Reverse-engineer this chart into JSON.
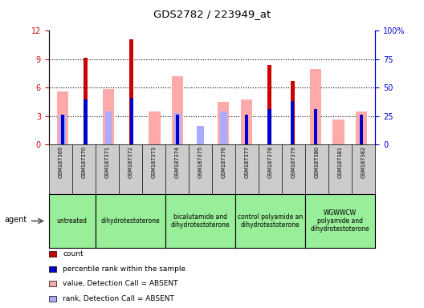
{
  "title": "GDS2782 / 223949_at",
  "samples": [
    "GSM187369",
    "GSM187370",
    "GSM187371",
    "GSM187372",
    "GSM187373",
    "GSM187374",
    "GSM187375",
    "GSM187376",
    "GSM187377",
    "GSM187378",
    "GSM187379",
    "GSM187380",
    "GSM187381",
    "GSM187382"
  ],
  "count": [
    0,
    9.2,
    0,
    11.1,
    0,
    0,
    0,
    0,
    0,
    8.4,
    6.7,
    0,
    0,
    0
  ],
  "percentile_rank_vals": [
    26.5,
    40.0,
    0,
    41.5,
    0,
    26.5,
    0,
    0,
    26.5,
    31.0,
    38.5,
    31.0,
    0,
    26.5
  ],
  "value_absent": [
    5.6,
    0,
    5.9,
    0,
    3.5,
    7.2,
    0,
    4.5,
    4.8,
    0,
    0,
    8.0,
    2.7,
    3.5
  ],
  "rank_absent_vals": [
    26.5,
    0,
    29.0,
    0,
    0,
    27.5,
    16.5,
    29.0,
    0,
    0,
    0,
    0,
    0,
    0
  ],
  "ylim_left": [
    0,
    12
  ],
  "ylim_right": [
    0,
    100
  ],
  "yticks_left": [
    0,
    3,
    6,
    9,
    12
  ],
  "yticks_right": [
    0,
    25,
    50,
    75,
    100
  ],
  "ytick_right_labels": [
    "0",
    "25",
    "50",
    "75",
    "100%"
  ],
  "group_info": [
    {
      "label": "untreated",
      "indices": [
        0,
        1
      ]
    },
    {
      "label": "dihydrotestoterone",
      "indices": [
        2,
        3,
        4
      ]
    },
    {
      "label": "bicalutamide and\ndihydrotestoterone",
      "indices": [
        5,
        6,
        7
      ]
    },
    {
      "label": "control polyamide an\ndihydrotestoterone",
      "indices": [
        8,
        9,
        10
      ]
    },
    {
      "label": "WGWWCW\npolyamide and\ndihydrotestoterone",
      "indices": [
        11,
        12,
        13
      ]
    }
  ],
  "color_count": "#cc0000",
  "color_percentile": "#0000cc",
  "color_value_absent": "#ffaaaa",
  "color_rank_absent": "#aaaaff",
  "green_color": "#99ee99",
  "gray_color": "#cccccc",
  "background_color": "#ffffff",
  "left_axis_color": "#cc0000",
  "right_axis_color": "#0000cc"
}
